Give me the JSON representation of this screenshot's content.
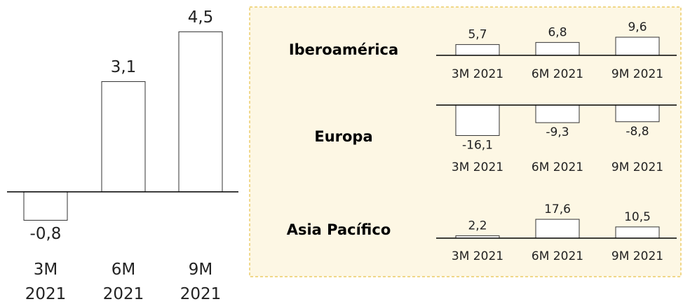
{
  "chart_data": [
    {
      "type": "bar",
      "categories": [
        "3M 2021",
        "6M 2021",
        "9M 2021"
      ],
      "values": [
        -0.8,
        3.1,
        4.5
      ],
      "value_labels": [
        "-0,8",
        "3,1",
        "4,5"
      ],
      "color": "#ffffff",
      "ylim": [
        -1.5,
        5
      ]
    },
    {
      "type": "bar",
      "title": "Iberoamérica",
      "categories": [
        "3M 2021",
        "6M 2021",
        "9M 2021"
      ],
      "values": [
        5.7,
        6.8,
        9.6
      ],
      "value_labels": [
        "5,7",
        "6,8",
        "9,6"
      ],
      "color": "#ffffff",
      "ylim": [
        0,
        12
      ]
    },
    {
      "type": "bar",
      "title": "Europa",
      "categories": [
        "3M 2021",
        "6M 2021",
        "9M 2021"
      ],
      "values": [
        -16.1,
        -9.3,
        -8.8
      ],
      "value_labels": [
        "-16,1",
        "-9,3",
        "-8,8"
      ],
      "color": "#ffffff",
      "ylim": [
        -18,
        0
      ]
    },
    {
      "type": "bar",
      "title": "Asia Pacífico",
      "categories": [
        "3M 2021",
        "6M 2021",
        "9M 2021"
      ],
      "values": [
        2.2,
        17.6,
        10.5
      ],
      "value_labels": [
        "2,2",
        "17,6",
        "10,5"
      ],
      "color": "#ffffff",
      "ylim": [
        0,
        20
      ]
    }
  ]
}
